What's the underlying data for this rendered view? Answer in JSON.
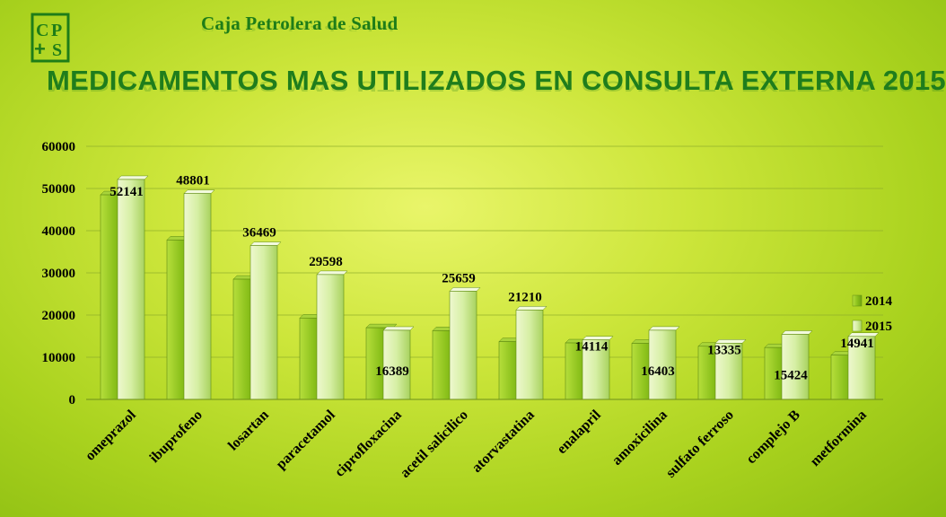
{
  "header": {
    "brand": "Caja Petrolera de Salud",
    "title": "MEDICAMENTOS MAS UTILIZADOS EN CONSULTA EXTERNA 2015"
  },
  "colors": {
    "series_2014": "#8cc21c",
    "series_2015": "#d6efa4",
    "brand_green": "#1e7d18"
  },
  "chart_data": {
    "type": "bar",
    "categories": [
      "omeprazol",
      "ibuprofeno",
      "losartan",
      "paracetamol",
      "ciprofloxacina",
      "acetil salicilico",
      "atorvastatina",
      "enalapril",
      "amoxicilina",
      "sulfato ferroso",
      "complejo B",
      "metformina"
    ],
    "series": [
      {
        "name": "2014",
        "values": [
          48500,
          37800,
          28500,
          19300,
          17000,
          16300,
          13700,
          13400,
          13300,
          12600,
          12300,
          10500
        ]
      },
      {
        "name": "2015",
        "values": [
          52141,
          48801,
          36469,
          29598,
          16389,
          25659,
          21210,
          14114,
          16403,
          13335,
          15424,
          14941
        ]
      }
    ],
    "data_labels": [
      "52141",
      "48801",
      "36469",
      "29598",
      "16389",
      "25659",
      "21210",
      "14114",
      "16403",
      "13335",
      "15424",
      "14941"
    ],
    "y_ticks": [
      "0",
      "10000",
      "20000",
      "30000",
      "40000",
      "50000",
      "60000"
    ],
    "ylim": [
      0,
      60000
    ],
    "grid": true,
    "legend_position": "right"
  }
}
